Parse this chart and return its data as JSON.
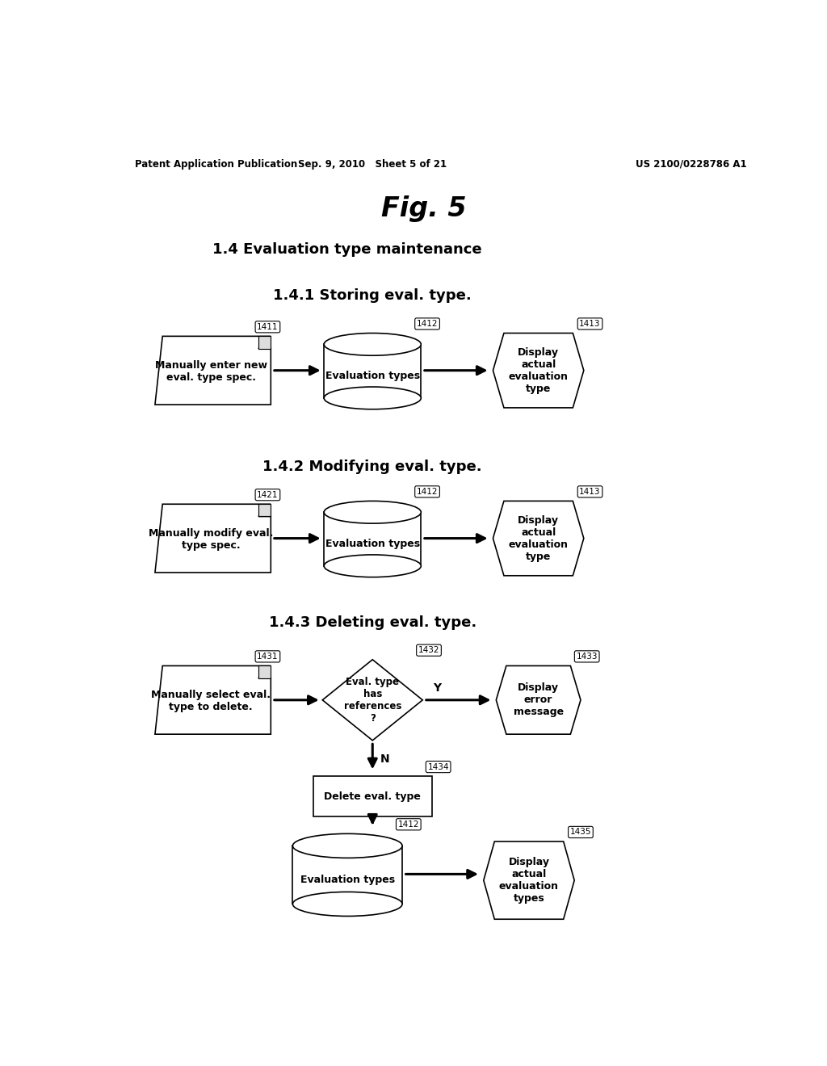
{
  "bg_color": "#ffffff",
  "header_left": "Patent Application Publication",
  "header_mid": "Sep. 9, 2010   Sheet 5 of 21",
  "header_right": "US 2100/0228786 A1",
  "fig_title": "Fig. 5",
  "section_title": "1.4 Evaluation type maintenance",
  "lw": 1.2
}
